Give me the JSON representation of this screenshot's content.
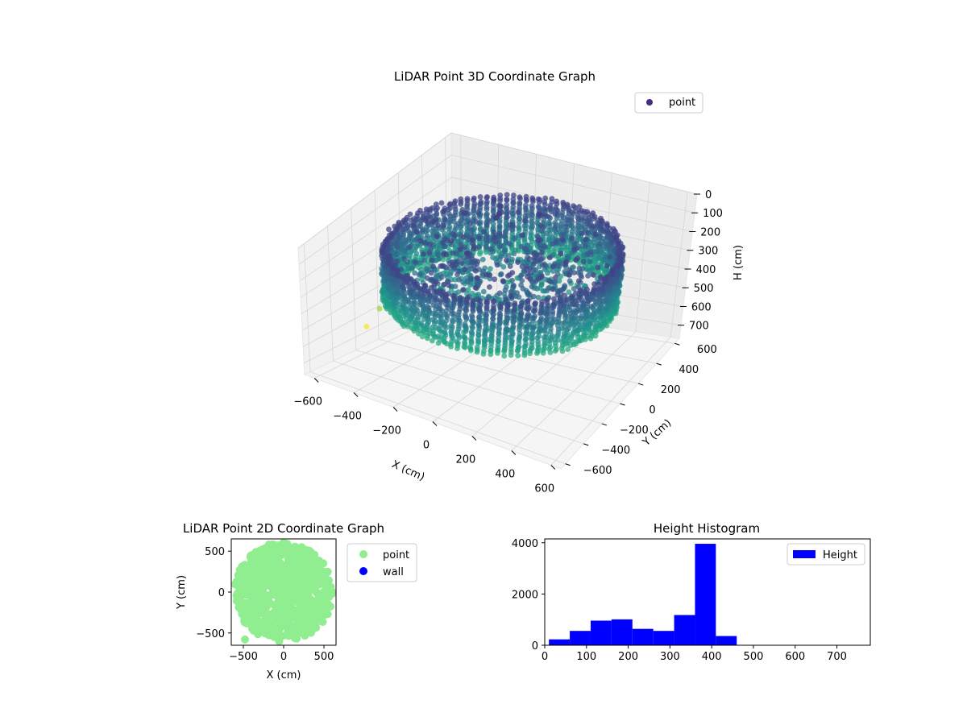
{
  "chart_data": [
    {
      "type": "scatter",
      "projection": "3d",
      "title": "LiDAR Point 3D Coordinate Graph",
      "xlabel": "X (cm)",
      "ylabel": "Y (cm)",
      "zlabel": "H (cm)",
      "x_ticks": [
        "−600",
        "−400",
        "−200",
        "0",
        "200",
        "400",
        "600"
      ],
      "y_ticks": [
        "−600",
        "−400",
        "−200",
        "0",
        "200",
        "400",
        "600"
      ],
      "z_ticks": [
        "0",
        "100",
        "200",
        "300",
        "400",
        "500",
        "600",
        "700"
      ],
      "xlim": [
        -650,
        650
      ],
      "ylim": [
        -650,
        650
      ],
      "zlim": [
        0,
        770
      ],
      "z_inverted": true,
      "grid": true,
      "colormap": "viridis",
      "legend": {
        "placement": "upper-right",
        "entries": [
          "point"
        ]
      },
      "series": [
        {
          "name": "point",
          "description": "ring-shaped scan at radius ~550 cm with heights mostly 350-400 cm, plus an inner spiral and a few outliers",
          "ring_radius": 550,
          "outliers": [
            {
              "x": -620,
              "y": -150,
              "h": 650
            },
            {
              "x": -580,
              "y": -100,
              "h": 560
            },
            {
              "x": -560,
              "y": -60,
              "h": 500
            },
            {
              "x": -540,
              "y": -40,
              "h": 430
            },
            {
              "x": -520,
              "y": -20,
              "h": 350
            }
          ]
        }
      ]
    },
    {
      "type": "scatter",
      "title": "LiDAR Point 2D Coordinate Graph",
      "xlabel": "X (cm)",
      "ylabel": "Y (cm)",
      "x_ticks": [
        "−500",
        "0",
        "500"
      ],
      "y_ticks": [
        "−500",
        "0",
        "500"
      ],
      "xlim": [
        -650,
        650
      ],
      "ylim": [
        -650,
        650
      ],
      "legend": {
        "placement": "outside-right",
        "entries": [
          "point",
          "wall"
        ]
      },
      "series": [
        {
          "name": "point",
          "color": "#90ee90",
          "shape": "filled disc, radius ~600 cm",
          "outlier": {
            "x": -480,
            "y": -580
          }
        },
        {
          "name": "wall",
          "color": "#0000ff"
        }
      ]
    },
    {
      "type": "bar",
      "title": "Height Histogram",
      "legend": {
        "placement": "top-right",
        "entries": [
          "Height"
        ]
      },
      "color": "#0000ff",
      "x_ticks": [
        "0",
        "100",
        "200",
        "300",
        "400",
        "500",
        "600",
        "700"
      ],
      "y_ticks": [
        "0",
        "2000",
        "4000"
      ],
      "xlim": [
        0,
        780
      ],
      "ylim": [
        0,
        4150
      ],
      "series": [
        {
          "name": "Height",
          "bins": [
            {
              "x0": 10,
              "x1": 60,
              "value": 230
            },
            {
              "x0": 60,
              "x1": 110,
              "value": 560
            },
            {
              "x0": 110,
              "x1": 160,
              "value": 960
            },
            {
              "x0": 160,
              "x1": 210,
              "value": 1010
            },
            {
              "x0": 210,
              "x1": 260,
              "value": 640
            },
            {
              "x0": 260,
              "x1": 310,
              "value": 560
            },
            {
              "x0": 310,
              "x1": 360,
              "value": 1180
            },
            {
              "x0": 360,
              "x1": 410,
              "value": 3960
            },
            {
              "x0": 410,
              "x1": 460,
              "value": 360
            }
          ]
        }
      ]
    }
  ]
}
